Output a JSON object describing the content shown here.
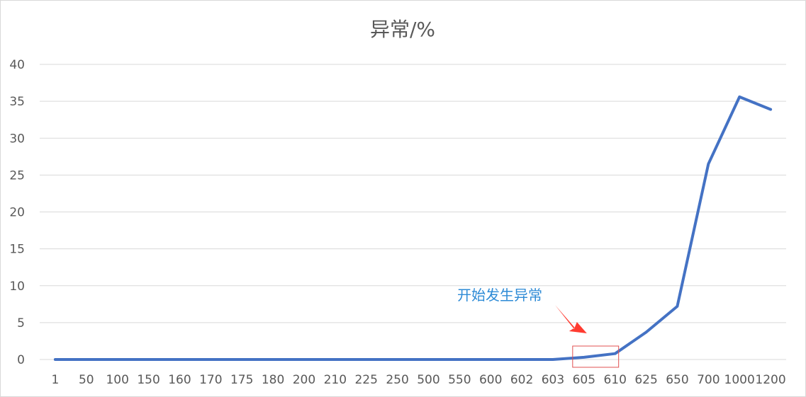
{
  "chart_data": {
    "type": "line",
    "title": "异常/%",
    "xlabel": "",
    "ylabel": "",
    "categories": [
      "1",
      "50",
      "100",
      "150",
      "160",
      "170",
      "175",
      "180",
      "200",
      "210",
      "225",
      "250",
      "500",
      "550",
      "600",
      "602",
      "603",
      "605",
      "610",
      "625",
      "650",
      "700",
      "1000",
      "1200"
    ],
    "series": [
      {
        "values": [
          0,
          0,
          0,
          0,
          0,
          0,
          0,
          0,
          0,
          0,
          0,
          0,
          0,
          0,
          0,
          0,
          0,
          0.3,
          0.8,
          3.7,
          7.2,
          26.5,
          35.6,
          33.9
        ],
        "color": "#4472c4"
      }
    ],
    "ylim": [
      0,
      40
    ],
    "yticks": [
      0,
      5,
      10,
      15,
      20,
      25,
      30,
      35,
      40
    ],
    "grid": true,
    "legend": "none",
    "annotation": {
      "text": "开始发生异常",
      "color": "#2e8bd6",
      "arrow_color": "#ff3b30",
      "box_color": "#e05050",
      "highlight_categories": [
        "605",
        "610"
      ]
    }
  }
}
